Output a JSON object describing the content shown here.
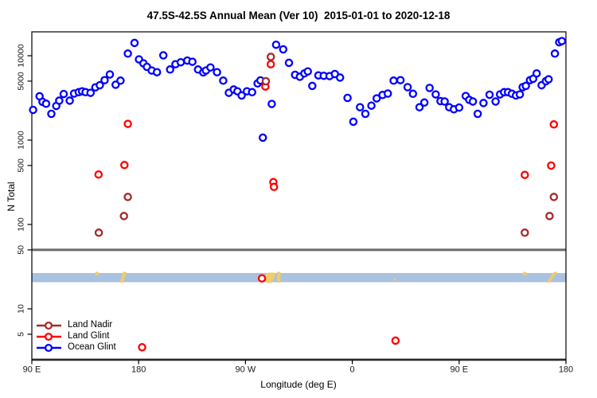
{
  "title": "47.5S-42.5S Annual Mean (Ver 10)  2015-01-01 to 2020-12-18",
  "axes": {
    "y_label": "N Total",
    "x_label": "Longitude (deg E)",
    "y_ticks": [
      5,
      10,
      50,
      100,
      500,
      1000,
      5000,
      10000
    ],
    "x_ticks": [
      {
        "lon": 90,
        "label": "90 E"
      },
      {
        "lon": 180,
        "label": "180"
      },
      {
        "lon": 270,
        "label": "90 W"
      },
      {
        "lon": 360,
        "label": "0"
      },
      {
        "lon": 450,
        "label": "90 E"
      },
      {
        "lon": 540,
        "label": "180"
      }
    ]
  },
  "legend": [
    {
      "label": "Land Nadir",
      "color": "#A52A2A"
    },
    {
      "label": "Land Glint",
      "color": "#FF0000"
    },
    {
      "label": "Ocean Glint",
      "color": "#0000FF"
    }
  ],
  "colors": {
    "ocean_band": "#A9C2DF",
    "land_patch": "#F0CC6A",
    "reference_line": "#6B6B6B",
    "frame": "#000000"
  },
  "map_band": {
    "description": "latitude-band map strip: ocean blue with land in yellow",
    "patches": [
      {
        "kind": "dot-top",
        "lon": 144.9
      },
      {
        "kind": "slash",
        "lon0": 164.2,
        "lon1": 169.8
      },
      {
        "kind": "blob",
        "lon0": 285.4,
        "lon1": 295.5
      },
      {
        "kind": "slash",
        "lon0": 296.5,
        "lon1": 299.5
      },
      {
        "kind": "dot-small",
        "lon": 395.9
      },
      {
        "kind": "dot-top",
        "lon": 505.3
      },
      {
        "kind": "slash",
        "lon0": 523.5,
        "lon1": 532.8
      }
    ]
  },
  "chart_data": {
    "type": "scatter",
    "title": "47.5S-42.5S Annual Mean (Ver 10)  2015-01-01 to 2020-12-18",
    "xlabel": "Longitude (deg E)",
    "ylabel": "N Total",
    "x_axis": {
      "min": 90,
      "max": 540,
      "note": "longitude wraps eastward: 90E,180,90W,0,90E,180"
    },
    "y_axis": {
      "scale": "log10",
      "min": 2.5,
      "max": 20000
    },
    "reference_lines_n": [
      50,
      2.5
    ],
    "series": [
      {
        "name": "Ocean Glint",
        "color": "#0000FF",
        "points": [
          [
            91.1,
            2280
          ],
          [
            96.5,
            3310
          ],
          [
            99,
            2840
          ],
          [
            102,
            2700
          ],
          [
            106.4,
            2050
          ],
          [
            110.6,
            2540
          ],
          [
            113.1,
            2940
          ],
          [
            116.8,
            3520
          ],
          [
            121.9,
            2940
          ],
          [
            125.6,
            3560
          ],
          [
            129.5,
            3700
          ],
          [
            132.4,
            3790
          ],
          [
            135.3,
            3700
          ],
          [
            139.5,
            3630
          ],
          [
            143.5,
            4220
          ],
          [
            147.3,
            4470
          ],
          [
            151.3,
            5130
          ],
          [
            155.7,
            6000
          ],
          [
            160.6,
            4540
          ],
          [
            164.7,
            5070
          ],
          [
            170.9,
            10600
          ],
          [
            176.5,
            14200
          ],
          [
            180.3,
            9040
          ],
          [
            184,
            8110
          ],
          [
            187,
            7380
          ],
          [
            191,
            6670
          ],
          [
            195.4,
            6380
          ],
          [
            200.8,
            10100
          ],
          [
            206.5,
            6860
          ],
          [
            211,
            7930
          ],
          [
            215.5,
            8360
          ],
          [
            221,
            8750
          ],
          [
            225.3,
            8470
          ],
          [
            230,
            6860
          ],
          [
            234.4,
            6350
          ],
          [
            236.7,
            6670
          ],
          [
            240.5,
            7270
          ],
          [
            246,
            6380
          ],
          [
            251.2,
            5070
          ],
          [
            256,
            3630
          ],
          [
            260.1,
            3980
          ],
          [
            263.2,
            3790
          ],
          [
            266.8,
            3380
          ],
          [
            271.2,
            3790
          ],
          [
            275.6,
            3700
          ],
          [
            280.2,
            4700
          ],
          [
            282.6,
            5100
          ],
          [
            284.6,
            1070
          ],
          [
            292.1,
            2680
          ],
          [
            295.8,
            13500
          ],
          [
            301.8,
            11900
          ],
          [
            306.6,
            8240
          ],
          [
            311.8,
            5940
          ],
          [
            315.8,
            5630
          ],
          [
            319.6,
            6170
          ],
          [
            322.5,
            6520
          ],
          [
            326.3,
            4390
          ],
          [
            331.4,
            5850
          ],
          [
            335.9,
            5790
          ],
          [
            340.8,
            5740
          ],
          [
            345.3,
            6070
          ],
          [
            349.7,
            5520
          ],
          [
            356,
            3160
          ],
          [
            360.9,
            1650
          ],
          [
            366.5,
            2450
          ],
          [
            371,
            2050
          ],
          [
            376.1,
            2560
          ],
          [
            380.5,
            3120
          ],
          [
            385.5,
            3430
          ],
          [
            389.9,
            3560
          ],
          [
            394.8,
            5070
          ],
          [
            400.6,
            5130
          ],
          [
            406.6,
            4240
          ],
          [
            411.1,
            3540
          ],
          [
            416.6,
            2450
          ],
          [
            420.7,
            2790
          ],
          [
            425.1,
            4150
          ],
          [
            430.3,
            3480
          ],
          [
            434.3,
            2900
          ],
          [
            437.8,
            2870
          ],
          [
            441.6,
            2450
          ],
          [
            445.6,
            2320
          ],
          [
            450,
            2430
          ],
          [
            455.6,
            3330
          ],
          [
            458.5,
            3000
          ],
          [
            461.6,
            2870
          ],
          [
            465.6,
            2050
          ],
          [
            470.5,
            2750
          ],
          [
            475.6,
            3450
          ],
          [
            480.7,
            2870
          ],
          [
            484.5,
            3480
          ],
          [
            487.9,
            3700
          ],
          [
            491.2,
            3700
          ],
          [
            494.5,
            3540
          ],
          [
            497.9,
            3380
          ],
          [
            501.2,
            3480
          ],
          [
            503.5,
            4240
          ],
          [
            506.2,
            4390
          ],
          [
            509.7,
            5130
          ],
          [
            512.4,
            5340
          ],
          [
            515.3,
            6170
          ],
          [
            519.5,
            4470
          ],
          [
            523.1,
            4990
          ],
          [
            525.4,
            5260
          ],
          [
            530.7,
            10600
          ],
          [
            534.3,
            14450
          ],
          [
            536.6,
            14900
          ]
        ]
      },
      {
        "name": "Land Glint",
        "color": "#FF0000",
        "points": [
          [
            146.2,
            391
          ],
          [
            168,
            507
          ],
          [
            170.9,
            1557
          ],
          [
            182.9,
            3.5
          ],
          [
            283.9,
            23
          ],
          [
            286.8,
            4310
          ],
          [
            291.3,
            7930
          ],
          [
            293.5,
            318
          ],
          [
            294,
            279
          ],
          [
            396.4,
            4.2
          ],
          [
            505.3,
            387
          ],
          [
            527.5,
            499
          ],
          [
            529.8,
            1535
          ]
        ]
      },
      {
        "name": "Land Nadir",
        "color": "#A52A2A",
        "points": [
          [
            146.4,
            80
          ],
          [
            167.6,
            126
          ],
          [
            170.9,
            212
          ],
          [
            287.2,
            4990
          ],
          [
            291.3,
            9700
          ],
          [
            505.3,
            80
          ],
          [
            526.2,
            126
          ],
          [
            529.8,
            212
          ]
        ]
      }
    ]
  }
}
